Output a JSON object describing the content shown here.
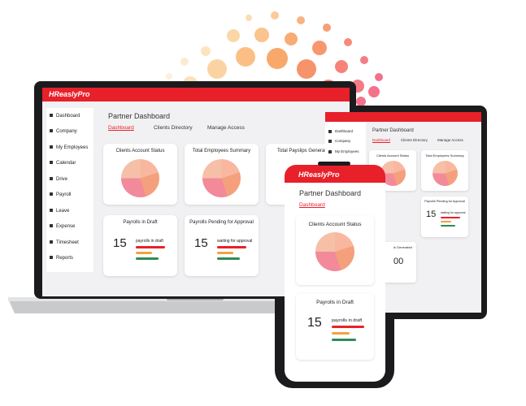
{
  "logo": {
    "brand": "HReasly",
    "suffix": "Pro"
  },
  "laptop": {
    "sidebar": [
      "Dashboard",
      "Company",
      "My Employees",
      "Calendar",
      "Drive",
      "Payroll",
      "Leave",
      "Expense",
      "Timesheet",
      "Reports"
    ],
    "title": "Partner Dashboard",
    "tabs": [
      "Dashboard",
      "Clients Directory",
      "Manage Access"
    ],
    "cards": [
      "Clients Account Status",
      "Total Employees Summary",
      "Total Payslips Generat"
    ],
    "draft": {
      "title": "Payrolls in Draft",
      "count": 15,
      "label": "payrolls in draft"
    },
    "pending": {
      "title": "Payrolls Pending for Approval",
      "count": 15,
      "label": "waiting for approval"
    }
  },
  "tablet": {
    "sidebar": [
      "Dashboard",
      "Company",
      "My Employees"
    ],
    "title": "Partner Dashboard",
    "tabs": [
      "Dashboard",
      "Clients Directory",
      "Manage Access"
    ],
    "cards": [
      "Clients Account Status",
      "Total Employees Summary"
    ],
    "pending": {
      "title": "Payrolls Pending for Approval",
      "count": 15,
      "label": "waiting for approval"
    },
    "generated": {
      "title": "ls Generated",
      "count": "00"
    }
  },
  "phone": {
    "title": "Partner Dashboard",
    "tab": "Dashboard",
    "card": "Clients Account Status",
    "draft": {
      "title": "Payrolls in Draft",
      "count": 15,
      "label": "payrolls in draft"
    }
  }
}
